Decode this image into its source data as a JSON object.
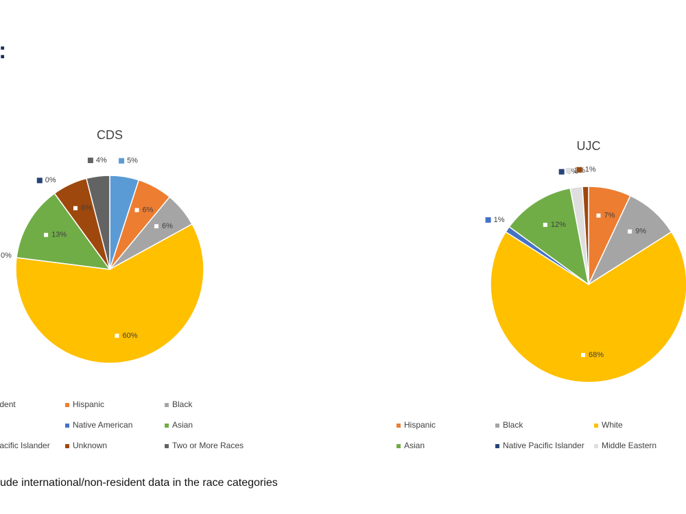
{
  "heading": ":",
  "footnote": "ude international/non-resident data in the race categories",
  "chart_data": [
    {
      "type": "pie",
      "title": "CDS",
      "categories": [
        "Non-resident",
        "Hispanic",
        "Black",
        "White",
        "Native American",
        "Asian",
        "Native Pacific Islander",
        "Unknown",
        "Two or More Races"
      ],
      "values": [
        5,
        6,
        6,
        60,
        0,
        13,
        0,
        6,
        4
      ],
      "value_labels": [
        "5%",
        "6%",
        "6%",
        "60%",
        "0%",
        "13%",
        "0%",
        "6%",
        "4%"
      ],
      "colors": [
        "#5b9bd5",
        "#ed7d31",
        "#a5a5a5",
        "#ffc000",
        "#4472c4",
        "#70ad47",
        "#264478",
        "#9e480e",
        "#636363"
      ]
    },
    {
      "type": "pie",
      "title": "UJC",
      "categories": [
        "Hispanic",
        "Black",
        "White",
        "Native American",
        "Asian",
        "Native Pacific Islander",
        "Middle Eastern",
        "Unknown"
      ],
      "values": [
        7,
        9,
        68,
        1,
        12,
        0,
        2,
        1
      ],
      "value_labels": [
        "7%",
        "9%",
        "68%",
        "1%",
        "12%",
        "0%",
        "2%",
        "1%"
      ],
      "colors": [
        "#ed7d31",
        "#a5a5a5",
        "#ffc000",
        "#4472c4",
        "#70ad47",
        "#264478",
        "#dedede",
        "#9e480e"
      ]
    }
  ]
}
